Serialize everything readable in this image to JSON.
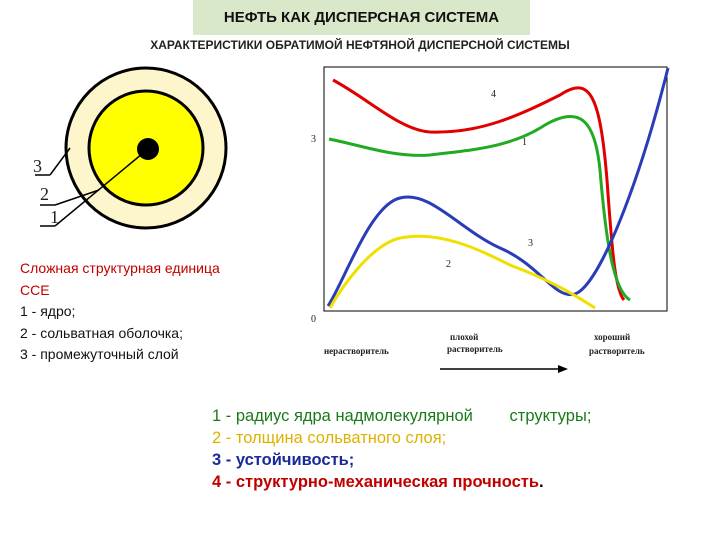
{
  "title": "НЕФТЬ КАК ДИСПЕРСНАЯ СИСТЕМА",
  "subtitle": "ХАРАКТЕРИСТИКИ ОБРАТИМОЙ НЕФТЯНОЙ ДИСПЕРСНОЙ СИСТЕМЫ",
  "particle": {
    "labels": [
      "3",
      "2",
      "1"
    ],
    "colors": {
      "outer": "#fdf5cc",
      "middle": "#ffff00",
      "core": "#000000",
      "ring": "#000000"
    }
  },
  "cce": {
    "title": "Сложная структурная единица ССЕ",
    "items": [
      "1 - ядро;",
      "2 - сольватная оболочка;",
      "3 - промежуточный слой"
    ]
  },
  "graph": {
    "y_zero": "0",
    "y_three": "3",
    "curve_labels": [
      "4",
      "1",
      "3",
      "2"
    ],
    "x_words": [
      "нерастворитель",
      "плохой растворитель",
      "хороший растворитель"
    ],
    "colors": {
      "red": "#e00000",
      "green": "#22aa22",
      "blue": "#2a3db8",
      "yellow": "#f0e000"
    }
  },
  "legend": [
    {
      "num": "1",
      "text": " - радиус ядра надмолекулярной        структуры;",
      "color": "#1a7a1a"
    },
    {
      "num": "2",
      "text": " - толщина сольватного слоя;",
      "color": "#e0b000"
    },
    {
      "num": "3",
      "text": " - устойчивость;",
      "color": "#1a2a9a"
    },
    {
      "num": "4",
      "text": " - структурно-механическая прочность",
      "color": "#c00000"
    }
  ]
}
